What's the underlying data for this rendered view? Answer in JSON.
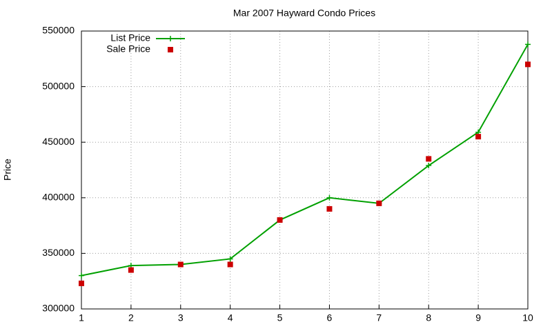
{
  "chart_data": {
    "type": "line",
    "title": "Mar 2007 Hayward Condo Prices",
    "y_label": "Price",
    "x": [
      1,
      2,
      3,
      4,
      5,
      6,
      7,
      8,
      9,
      10
    ],
    "series": [
      {
        "name": "List Price",
        "color": "#00a000",
        "style": "linespoints",
        "values": [
          330000,
          339000,
          340000,
          345000,
          380000,
          400000,
          395000,
          429000,
          459000,
          538000
        ]
      },
      {
        "name": "Sale Price",
        "color": "#cc0000",
        "style": "points",
        "values": [
          323000,
          335000,
          340000,
          340000,
          380000,
          390000,
          395000,
          435000,
          455000,
          520000
        ]
      }
    ],
    "xlim": [
      1,
      10
    ],
    "xticks": [
      1,
      2,
      3,
      4,
      5,
      6,
      7,
      8,
      9,
      10
    ],
    "ylim": [
      300000,
      550000
    ],
    "yticks": [
      300000,
      350000,
      400000,
      450000,
      500000,
      550000
    ],
    "grid": true,
    "legend": "top-left"
  }
}
